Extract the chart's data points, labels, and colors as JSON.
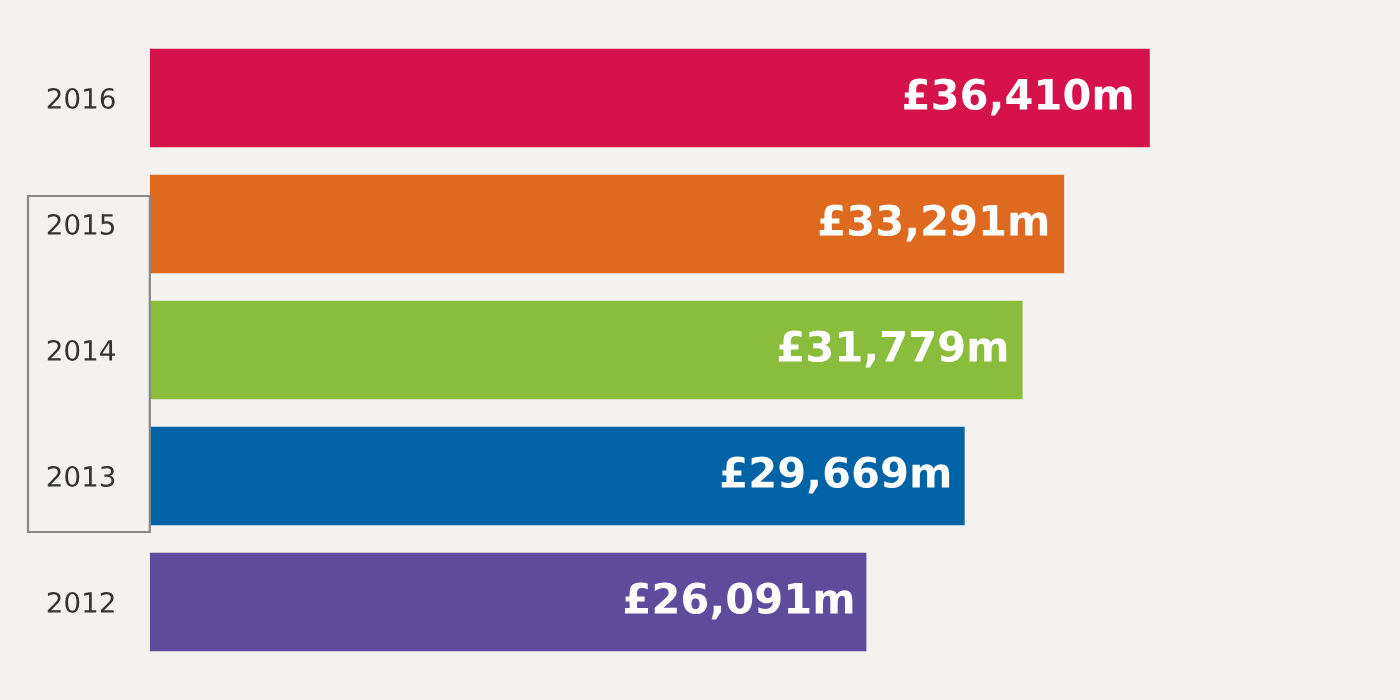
{
  "chart_data": {
    "type": "bar",
    "orientation": "horizontal",
    "categories": [
      "2016",
      "2015",
      "2014",
      "2013",
      "2012"
    ],
    "values": [
      36410,
      33291,
      31779,
      29669,
      26091
    ],
    "colors": [
      "#d6124a",
      "#dd6a1e",
      "#8bbd3c",
      "#0063a6",
      "#5f4b9b"
    ],
    "value_labels": [
      "£36,410m",
      "£33,291m",
      "£31,779m",
      "£29,669m",
      "£26,091m"
    ],
    "tick_labels": "y",
    "grid": false,
    "legend": false
  }
}
